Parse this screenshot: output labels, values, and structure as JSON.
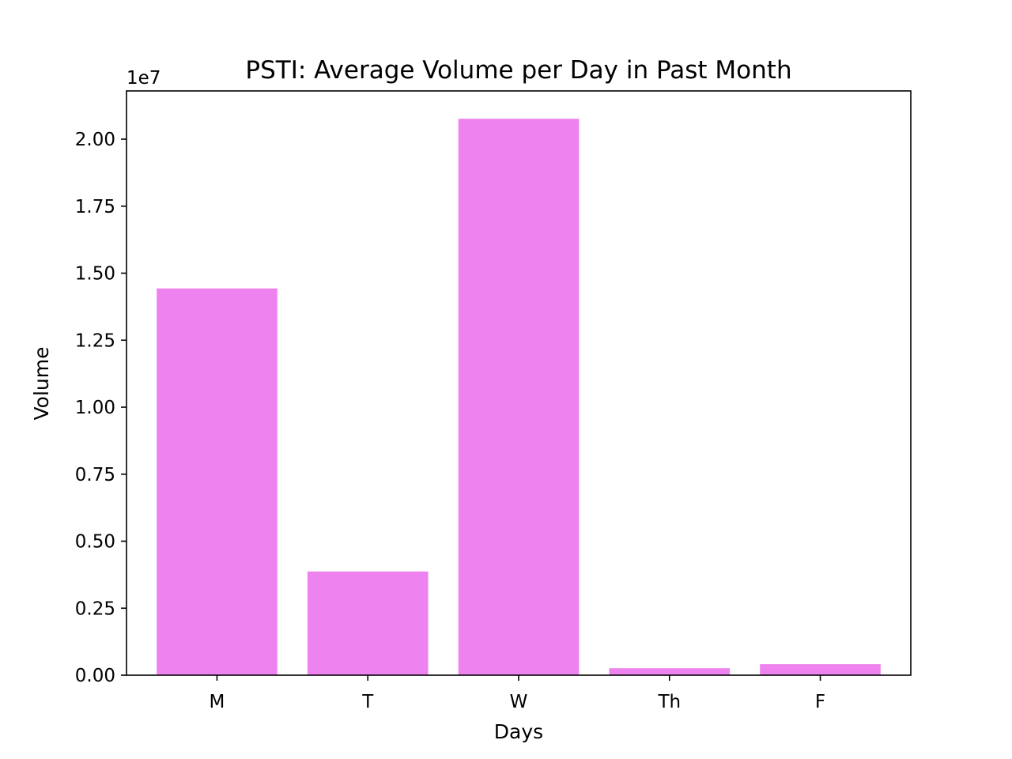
{
  "chart_data": {
    "type": "bar",
    "title": "PSTI: Average Volume per Day in Past Month",
    "xlabel": "Days",
    "ylabel": "Volume",
    "categories": [
      "M",
      "T",
      "W",
      "Th",
      "F"
    ],
    "values": [
      14430000,
      3870000,
      20760000,
      260000,
      410000
    ],
    "ylim": [
      0,
      21800000
    ],
    "yticks": [
      0,
      2500000,
      5000000,
      7500000,
      10000000,
      12500000,
      15000000,
      17500000,
      20000000
    ],
    "ytick_labels": [
      "0.00",
      "0.25",
      "0.50",
      "0.75",
      "1.00",
      "1.25",
      "1.50",
      "1.75",
      "2.00"
    ],
    "y_offset_label": "1e7",
    "bar_color": "#ee82ee",
    "grid": false,
    "legend": "none"
  }
}
